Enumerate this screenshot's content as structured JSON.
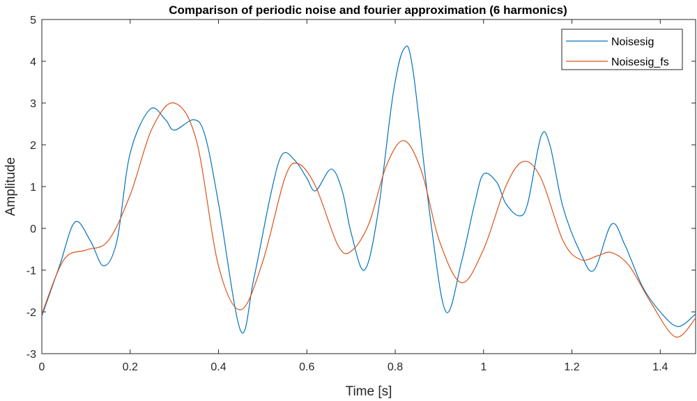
{
  "chart_data": {
    "type": "line",
    "title": "Comparison of periodic noise and fourier approximation (6 harmonics)",
    "xlabel": "Time [s]",
    "ylabel": "Amplitude",
    "xlim": [
      0,
      1.48
    ],
    "ylim": [
      -3,
      5
    ],
    "xticks": [
      0,
      0.2,
      0.4,
      0.6,
      0.8,
      1,
      1.2,
      1.4
    ],
    "xtick_labels": [
      "0",
      "0.2",
      "0.4",
      "0.6",
      "0.8",
      "1",
      "1.2",
      "1.4"
    ],
    "yticks": [
      -3,
      -2,
      -1,
      0,
      1,
      2,
      3,
      4,
      5
    ],
    "ytick_labels": [
      "-3",
      "-2",
      "-1",
      "0",
      "1",
      "2",
      "3",
      "4",
      "5"
    ],
    "grid": false,
    "legend_position": "top-right",
    "series": [
      {
        "name": "Noisesig",
        "color": "#0072BD",
        "x": [
          0,
          0.04,
          0.075,
          0.11,
          0.14,
          0.17,
          0.2,
          0.245,
          0.28,
          0.3,
          0.345,
          0.37,
          0.4,
          0.45,
          0.48,
          0.52,
          0.545,
          0.575,
          0.6,
          0.62,
          0.655,
          0.68,
          0.7,
          0.73,
          0.76,
          0.795,
          0.82,
          0.84,
          0.88,
          0.915,
          0.95,
          0.98,
          1.0,
          1.03,
          1.05,
          1.08,
          1.1,
          1.13,
          1.15,
          1.18,
          1.22,
          1.25,
          1.29,
          1.32,
          1.36,
          1.4,
          1.44,
          1.48
        ],
        "y": [
          -2.1,
          -0.9,
          0.15,
          -0.3,
          -0.9,
          -0.3,
          1.8,
          2.85,
          2.6,
          2.35,
          2.6,
          2.2,
          0.6,
          -2.45,
          -1.2,
          0.9,
          1.78,
          1.6,
          1.2,
          0.9,
          1.42,
          0.9,
          -0.1,
          -1.0,
          0.3,
          3.2,
          4.3,
          3.8,
          0.2,
          -2.0,
          -0.8,
          0.6,
          1.3,
          1.1,
          0.6,
          0.3,
          0.6,
          2.2,
          2.0,
          0.5,
          -0.6,
          -1.0,
          0.1,
          -0.4,
          -1.4,
          -2.0,
          -2.35,
          -2.05
        ]
      },
      {
        "name": "Noisesig_fs",
        "color": "#D95319",
        "x": [
          0,
          0.05,
          0.1,
          0.15,
          0.2,
          0.25,
          0.3,
          0.35,
          0.4,
          0.45,
          0.5,
          0.55,
          0.58,
          0.62,
          0.67,
          0.7,
          0.74,
          0.78,
          0.82,
          0.86,
          0.9,
          0.95,
          1.0,
          1.05,
          1.09,
          1.13,
          1.18,
          1.22,
          1.26,
          1.29,
          1.33,
          1.38,
          1.435,
          1.48
        ],
        "y": [
          -2.05,
          -0.75,
          -0.52,
          -0.3,
          0.8,
          2.4,
          3.0,
          2.1,
          -0.9,
          -1.95,
          -0.8,
          1.2,
          1.55,
          1.0,
          -0.4,
          -0.55,
          0.1,
          1.5,
          2.1,
          1.35,
          -0.3,
          -1.3,
          -0.5,
          1.0,
          1.6,
          1.2,
          -0.3,
          -0.75,
          -0.65,
          -0.58,
          -0.9,
          -1.8,
          -2.6,
          -2.15
        ]
      }
    ]
  }
}
